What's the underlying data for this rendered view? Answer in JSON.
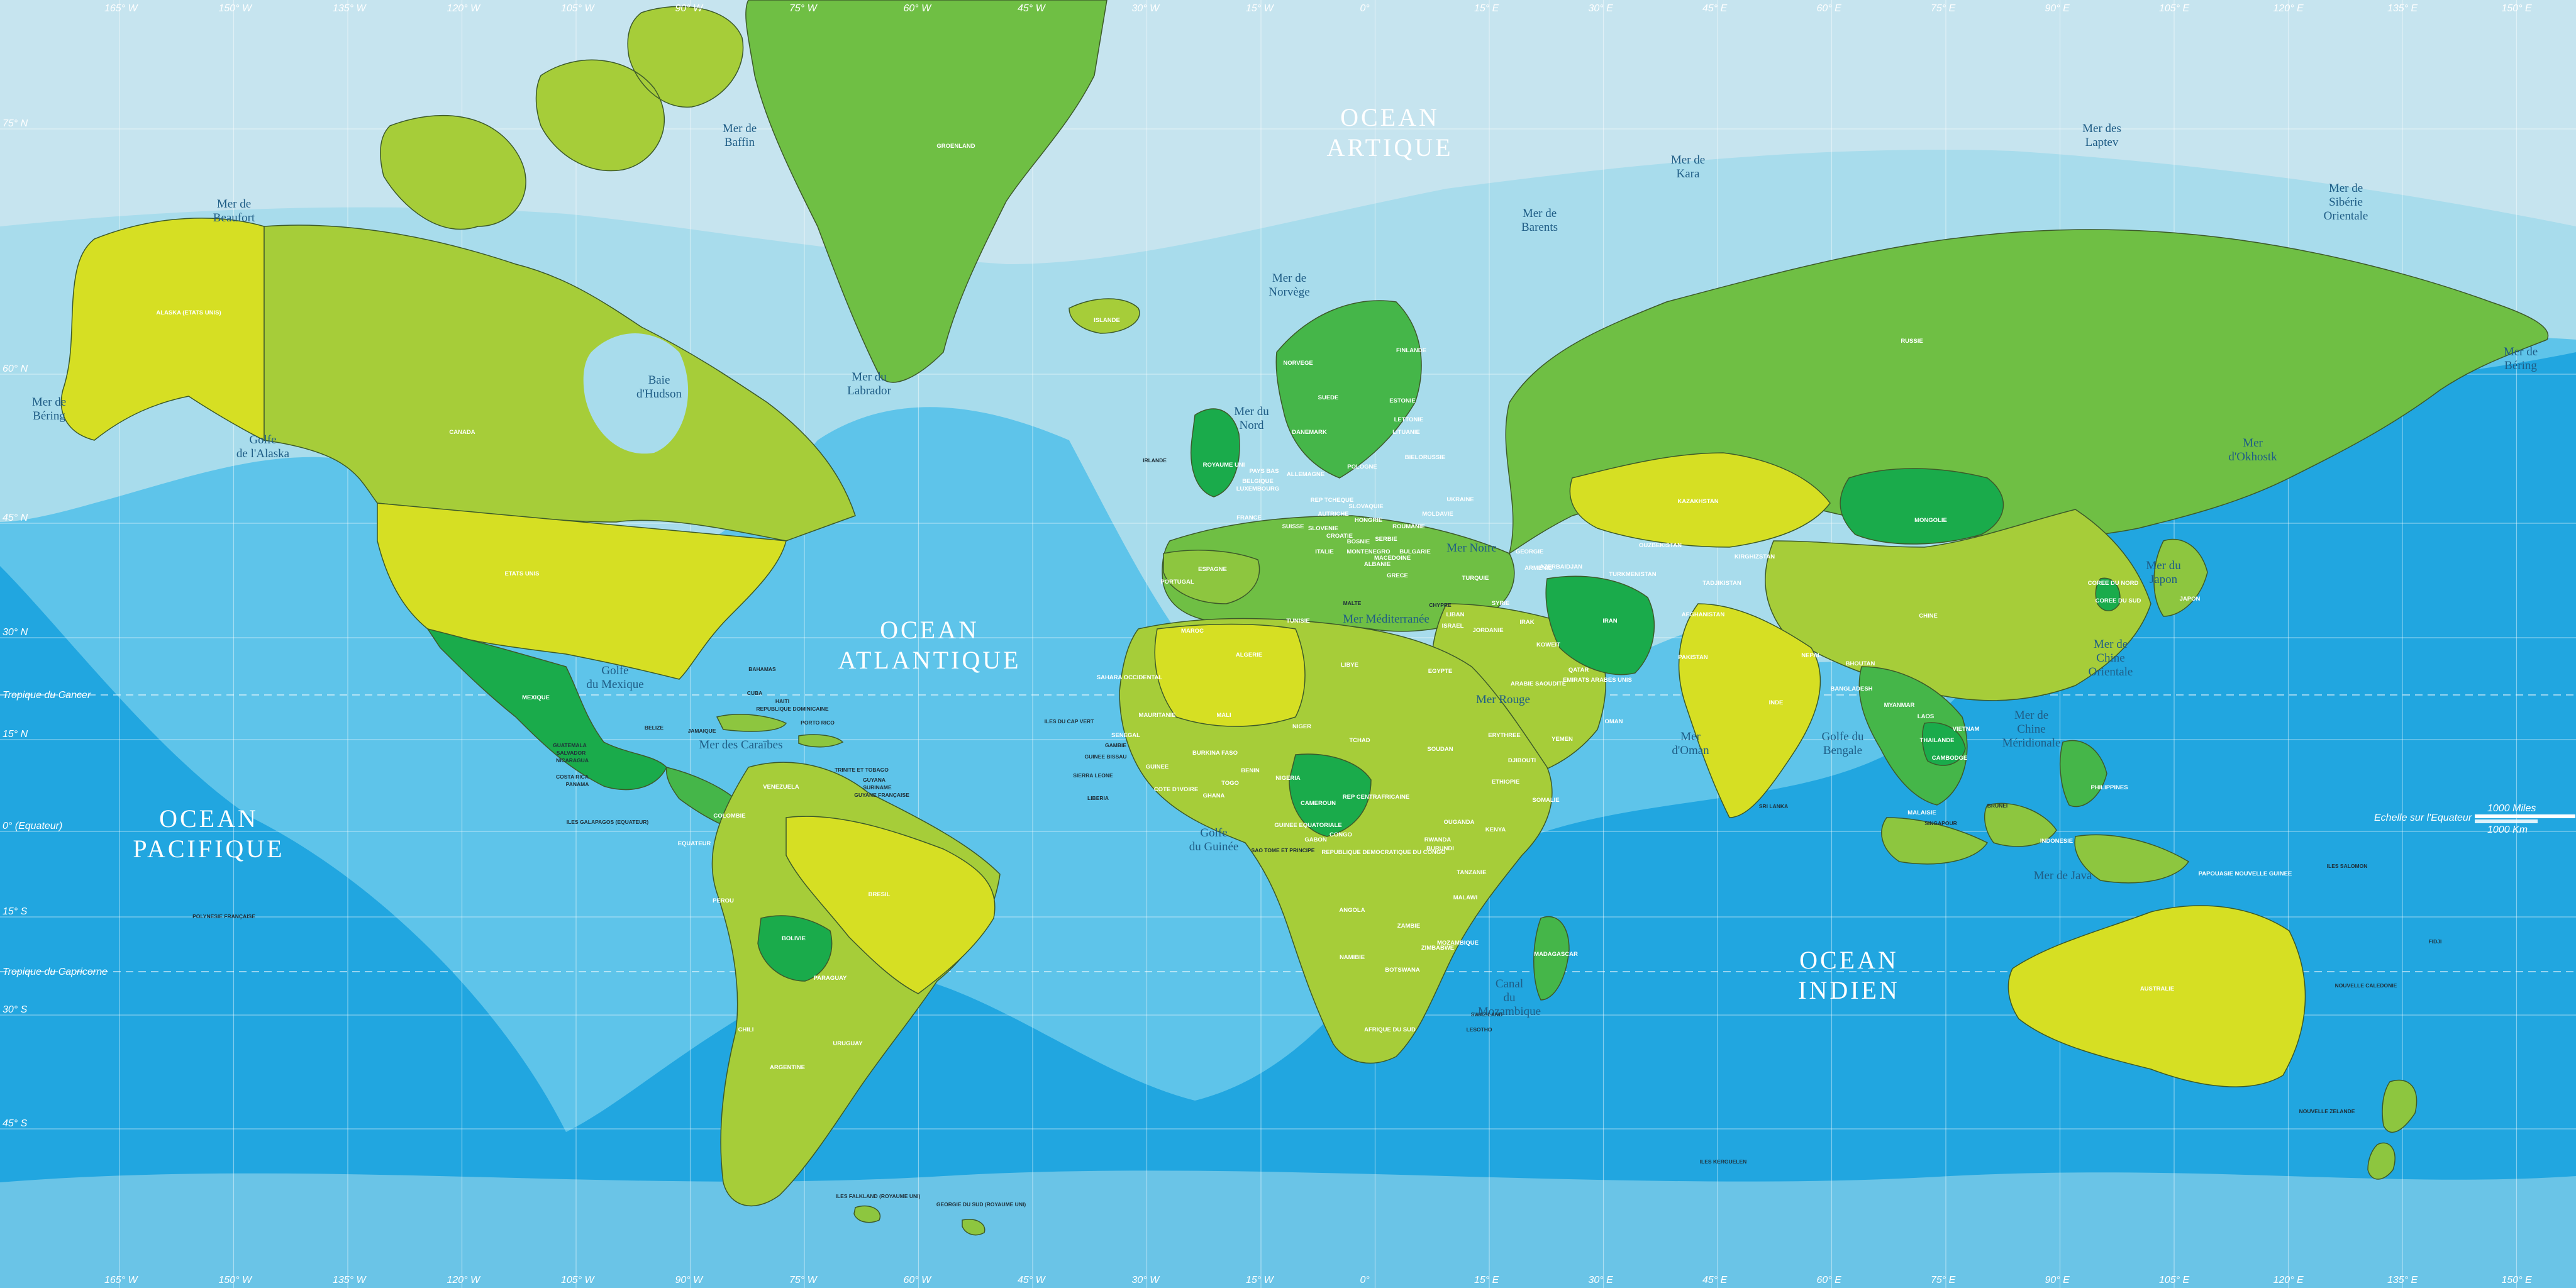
{
  "palette": {
    "ocean_deep": "#21a6e0",
    "ocean_mid": "#5ec4ea",
    "ocean_shelf": "#a8dcec",
    "ocean_polar": "#c6e4ef",
    "land_1": "#6fbf44",
    "land_2": "#a6cd39",
    "land_3": "#d6df23",
    "land_4": "#1aab4b",
    "land_5": "#45b649",
    "land_6": "#8dc63f"
  },
  "oceans": [
    {
      "lines": [
        "OCEAN",
        "ARTIQUE"
      ]
    },
    {
      "lines": [
        "OCEAN",
        "ATLANTIQUE"
      ]
    },
    {
      "lines": [
        "OCEAN",
        "PACIFIQUE"
      ]
    },
    {
      "lines": [
        "OCEAN",
        "INDIEN"
      ]
    }
  ],
  "seas": [
    {
      "lines": [
        "Mer de",
        "Baffin"
      ]
    },
    {
      "lines": [
        "Mer de",
        "Beaufort"
      ]
    },
    {
      "lines": [
        "Baie",
        "d'Hudson"
      ]
    },
    {
      "lines": [
        "Mer du",
        "Labrador"
      ]
    },
    {
      "lines": [
        "Golfe",
        "de l'Alaska"
      ]
    },
    {
      "lines": [
        "Mer de",
        "Béring"
      ]
    },
    {
      "lines": [
        "Mer de",
        "Norvège"
      ]
    },
    {
      "lines": [
        "Mer du",
        "Nord"
      ]
    },
    {
      "lines": [
        "Mer de",
        "Barents"
      ]
    },
    {
      "lines": [
        "Mer de",
        "Kara"
      ]
    },
    {
      "lines": [
        "Mer des",
        "Laptev"
      ]
    },
    {
      "lines": [
        "Mer de",
        "Sibérie",
        "Orientale"
      ]
    },
    {
      "lines": [
        "Mer de",
        "Béring"
      ]
    },
    {
      "lines": [
        "Mer",
        "d'Okhostk"
      ]
    },
    {
      "lines": [
        "Mer du",
        "Japon"
      ]
    },
    {
      "lines": [
        "Mer de",
        "Chine",
        "Orientale"
      ]
    },
    {
      "lines": [
        "Mer de",
        "Chine",
        "Méridionale"
      ]
    },
    {
      "lines": [
        "Golfe du",
        "Bengale"
      ]
    },
    {
      "lines": [
        "Mer",
        "d'Oman"
      ]
    },
    {
      "lines": [
        "Mer Noire"
      ]
    },
    {
      "lines": [
        "Mer Méditerranée"
      ]
    },
    {
      "lines": [
        "Mer Rouge"
      ]
    },
    {
      "lines": [
        "Golfe",
        "du Mexique"
      ]
    },
    {
      "lines": [
        "Mer des Caraïbes"
      ]
    },
    {
      "lines": [
        "Golfe",
        "du Guinée"
      ]
    },
    {
      "lines": [
        "Canal",
        "du",
        "Mozambique"
      ]
    },
    {
      "lines": [
        "Mer de Java"
      ]
    }
  ],
  "countries": [
    "GROENLAND",
    "ISLANDE",
    "ALASKA (ETATS UNIS)",
    "CANADA",
    "ETATS UNIS",
    "MEXIQUE",
    "CUBA",
    "HAITI",
    "REPUBLIQUE DOMINICAINE",
    "PORTO RICO",
    "JAMAIQUE",
    "BELIZE",
    "GUATEMALA",
    "SALVADOR",
    "NICARAGUA",
    "COSTA RICA",
    "PANAMA",
    "BAHAMAS",
    "TRINITE ET TOBAGO",
    "GUYANA",
    "SURINAME",
    "GUYANE FRANÇAISE",
    "COLOMBIE",
    "VENEZUELA",
    "EQUATEUR",
    "PEROU",
    "BRESIL",
    "BOLIVIE",
    "PARAGUAY",
    "CHILI",
    "ARGENTINE",
    "URUGUAY",
    "ILES GALAPAGOS (EQUATEUR)",
    "ILES FALKLAND (ROYAUME UNI)",
    "GEORGIE DU SUD (ROYAUME UNI)",
    "POLYNESIE FRANÇAISE",
    "NORVEGE",
    "SUEDE",
    "FINLANDE",
    "ESTONIE",
    "LETTONIE",
    "LITUANIE",
    "BIELORUSSIE",
    "IRLANDE",
    "ROYAUME UNI",
    "DANEMARK",
    "PAYS BAS",
    "BELGIQUE",
    "LUXEMBOURG",
    "ALLEMAGNE",
    "POLOGNE",
    "FRANCE",
    "SUISSE",
    "AUTRICHE",
    "HONGRIE",
    "ROUMANIE",
    "UKRAINE",
    "MOLDAVIE",
    "ITALIE",
    "SERBIE",
    "BULGARIE",
    "GRECE",
    "ESPAGNE",
    "PORTUGAL",
    "TURQUIE",
    "CHYPRE",
    "SYRIE",
    "LIBAN",
    "ISRAEL",
    "JORDANIE",
    "IRAK",
    "IRAN",
    "KOWEIT",
    "QATAR",
    "EMIRATS ARABES UNIS",
    "OMAN",
    "YEMEN",
    "ARABIE SAOUDITE",
    "KAZAKHSTAN",
    "OUZBEKISTAN",
    "TURKMENISTAN",
    "KIRGHIZSTAN",
    "TADJIKISTAN",
    "AFGHANISTAN",
    "PAKISTAN",
    "INDE",
    "NEPAL",
    "BHOUTAN",
    "BANGLADESH",
    "SRI LANKA",
    "RUSSIE",
    "MONGOLIE",
    "CHINE",
    "COREE DU NORD",
    "COREE DU SUD",
    "JAPON",
    "MYANMAR",
    "THAILANDE",
    "LAOS",
    "VIETNAM",
    "CAMBODGE",
    "MALAISIE",
    "BRUNEI",
    "SINGAPOUR",
    "PHILIPPINES",
    "INDONESIE",
    "PAPOUASIE NOUVELLE GUINEE",
    "ILES SALOMON",
    "AUSTRALIE",
    "NOUVELLE ZELANDE",
    "NOUVELLE CALEDONIE",
    "FIDJI",
    "MAROC",
    "ALGERIE",
    "TUNISIE",
    "LIBYE",
    "EGYPTE",
    "MAURITANIE",
    "MALI",
    "NIGER",
    "TCHAD",
    "SOUDAN",
    "ERYTHREE",
    "DJIBOUTI",
    "ETHIOPIE",
    "SOMALIE",
    "SENEGAL",
    "GAMBIE",
    "GUINEE BISSAU",
    "GUINEE",
    "SIERRA LEONE",
    "LIBERIA",
    "COTE D'IVOIRE",
    "BURKINA FASO",
    "GHANA",
    "TOGO",
    "BENIN",
    "NIGERIA",
    "CAMEROUN",
    "REP CENTRAFRICAINE",
    "GUINEE EQUATORIALE",
    "GABON",
    "CONGO",
    "REPUBLIQUE DEMOCRATIQUE DU CONGO",
    "SAO TOME ET PRINCIPE",
    "OUGANDA",
    "KENYA",
    "RWANDA",
    "BURUNDI",
    "TANZANIE",
    "ANGOLA",
    "ZAMBIE",
    "MALAWI",
    "MOZAMBIQUE",
    "ZIMBABWE",
    "BOTSWANA",
    "NAMIBIE",
    "AFRIQUE DU SUD",
    "SWAZILAND",
    "LESOTHO",
    "MADAGASCAR",
    "ILES DU CAP VERT",
    "SAHARA OCCIDENTAL",
    "ILES KERGUELEN",
    "MALTE",
    "ALBANIE",
    "MACEDOINE",
    "MONTENEGRO",
    "BOSNIE",
    "CROATIE",
    "SLOVENIE",
    "SLOVAQUIE",
    "REP TCHEQUE",
    "GEORGIE",
    "ARMENIE",
    "AZERBAIDJAN"
  ],
  "graticule": {
    "top_longitudes": [
      "165° W",
      "150° W",
      "135° W",
      "120° W",
      "105° W",
      "90° W",
      "75° W",
      "60° W",
      "45° W",
      "30° W",
      "15° W",
      "0°",
      "15° E",
      "30° E",
      "45° E",
      "60° E",
      "75° E",
      "90° E",
      "105° E",
      "120° E",
      "135° E",
      "150° E",
      "165° E",
      "180°"
    ],
    "bottom_longitudes": [
      "165° W",
      "150° W",
      "135° W",
      "120° W",
      "105° W",
      "90° W",
      "75° W",
      "60° W",
      "45° W",
      "30° W",
      "15° W",
      "0°",
      "15° E",
      "30° E",
      "45° E",
      "60° E",
      "75° E",
      "90° E",
      "105° E",
      "120° E",
      "135° E",
      "150° E",
      "165° E",
      "180°"
    ],
    "latitudes": [
      "75° N",
      "60° N",
      "45° N",
      "30° N",
      "15° N",
      "0° (Equateur)",
      "15° S",
      "30° S",
      "45° S"
    ],
    "tropic_cancer": "Tropique du Cancer",
    "tropic_capricorn": "Tropique du Capricorne"
  },
  "scale": {
    "caption": "Echelle sur l'Equateur",
    "miles": "1000 Miles",
    "km": "1000 Km"
  }
}
